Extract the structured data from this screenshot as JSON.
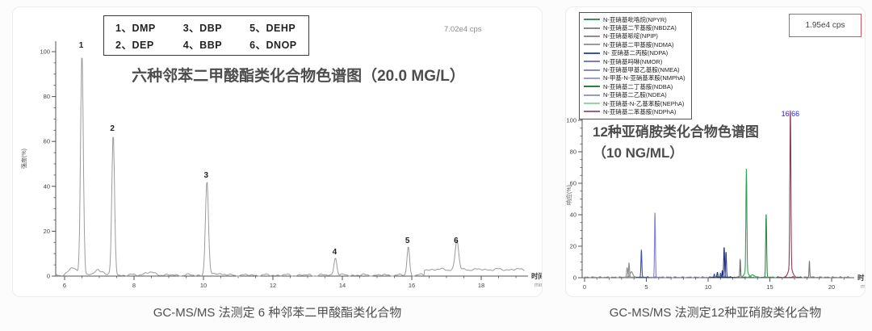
{
  "page": {
    "captions": {
      "left": "GC-MS/MS 法测定 6 种邻苯二甲酸酯类化合物",
      "right": "GC-MS/MS 法测定12种亚硝胺类化合物"
    }
  },
  "chart_data": [
    {
      "type": "line",
      "title": "六种邻苯二甲酸酯类化合物色谱图（20.0 MG/L）",
      "annotation": "7.02e4 cps",
      "xlabel": "时间",
      "xunit": "min",
      "ylabel": "强度(%)",
      "xlim": [
        5.75,
        19.25
      ],
      "ylim": [
        0,
        105
      ],
      "xticks": [
        6,
        8,
        10,
        12,
        14,
        16,
        18
      ],
      "yticks": [
        0,
        20,
        40,
        60,
        80,
        100
      ],
      "legend_items": [
        "1、DMP",
        "3、DBP",
        "5、DEHP",
        "2、DEP",
        "4、BBP",
        "6、DNOP"
      ],
      "trace_color": "#9b9b9b",
      "peaks": [
        {
          "label": "1",
          "t": 6.5,
          "h": 100,
          "w": 0.055
        },
        {
          "label": "2",
          "t": 7.4,
          "h": 63,
          "w": 0.055
        },
        {
          "label": "3",
          "t": 10.1,
          "h": 42,
          "w": 0.06
        },
        {
          "label": "4",
          "t": 13.8,
          "h": 8,
          "w": 0.06
        },
        {
          "label": "5",
          "t": 15.9,
          "h": 13,
          "w": 0.05
        },
        {
          "label": "6",
          "t": 17.3,
          "h": 13,
          "w": 0.07
        }
      ],
      "bumps": [
        {
          "t": 6.22,
          "h": 3.2,
          "w": 0.16
        },
        {
          "t": 6.95,
          "h": 2.2,
          "w": 0.12
        },
        {
          "t": 7.12,
          "h": 1.4,
          "w": 0.08
        },
        {
          "t": 8.45,
          "h": 1.1,
          "w": 0.25
        },
        {
          "t": 10.35,
          "h": 0.9,
          "w": 0.2
        }
      ],
      "baseline_step": {
        "t": 16.35,
        "offset": 2.5
      }
    },
    {
      "type": "line",
      "title_lines": [
        "12种亚硝胺类化合物色谱图",
        "（10 NG/ML）"
      ],
      "annotation": "1.95e4 cps",
      "xlabel": "时间",
      "xunit": "min",
      "ylabel": "响应(%)",
      "xlim": [
        0,
        21.6
      ],
      "ylim": [
        0,
        105
      ],
      "xticks": [
        0,
        5,
        10,
        15,
        20
      ],
      "yticks": [
        0,
        20,
        40,
        60,
        80,
        100
      ],
      "legend": [
        {
          "label": "N-亚硝基吡咯烷(NPYR)",
          "color": "#3d8f5f"
        },
        {
          "label": "N-亚硝基二苄基胺(NBDZA)",
          "color": "#8a8a8a"
        },
        {
          "label": "N-亚硝基哌啶(NPIP)",
          "color": "#9a8a8e"
        },
        {
          "label": "N-亚硝基二甲基胺(NDMA)",
          "color": "#9a9a9a"
        },
        {
          "label": "N- 亚硝基二丙胺(NDPA)",
          "color": "#3c50b4"
        },
        {
          "label": "N-亚硝基吗啉(NMOR)",
          "color": "#7a7ac8"
        },
        {
          "label": "N-亚硝基甲基乙基胺(NMEA)",
          "color": "#8090c0"
        },
        {
          "label": "N-甲基-N-亚硝基苯胺(NMPhA)",
          "color": "#9aa0c8"
        },
        {
          "label": "N-亚硝基二丁基胺(NDBA)",
          "color": "#2e7d46"
        },
        {
          "label": "N-亚硝基二乙胺(NDEA)",
          "color": "#90a0c8"
        },
        {
          "label": "N-亚硝基-N-乙基苯胺(NEPhA)",
          "color": "#8fd89f"
        },
        {
          "label": "N-亚硝基二苯基胺(NDPhA)",
          "color": "#a06080"
        }
      ],
      "baseline_segments": [
        {
          "from": 0,
          "to": 4.35,
          "color": "#8a8a8a"
        },
        {
          "from": 4.35,
          "to": 5.25,
          "color": "#3c50b4"
        },
        {
          "from": 5.25,
          "to": 10.35,
          "color": "#8080cc"
        },
        {
          "from": 10.35,
          "to": 12.35,
          "color": "#1e2f7a"
        },
        {
          "from": 12.35,
          "to": 12.85,
          "color": "#666666"
        },
        {
          "from": 12.85,
          "to": 15.55,
          "color": "#35a055"
        },
        {
          "from": 15.55,
          "to": 17.6,
          "color": "#8a3a5a"
        },
        {
          "from": 17.6,
          "to": 21.5,
          "color": "#888888"
        }
      ],
      "peaks": [
        {
          "t": 3.45,
          "h": 6,
          "w": 0.06,
          "color": "#8a8a8a"
        },
        {
          "t": 3.6,
          "h": 9,
          "w": 0.05,
          "color": "#8a8a8a"
        },
        {
          "t": 3.8,
          "h": 3.5,
          "w": 0.15,
          "color": "#8a8a8a"
        },
        {
          "t": 4.6,
          "h": 17,
          "w": 0.05,
          "color": "#3c50b4"
        },
        {
          "t": 5.7,
          "h": 41,
          "w": 0.05,
          "color": "#8080cc"
        },
        {
          "t": 10.5,
          "h": 2,
          "w": 0.05,
          "color": "#3c50b4"
        },
        {
          "t": 10.75,
          "h": 3,
          "w": 0.05,
          "color": "#1e2f7a"
        },
        {
          "t": 11.0,
          "h": 2.5,
          "w": 0.04,
          "color": "#3c50b4"
        },
        {
          "t": 11.15,
          "h": 4,
          "w": 0.04,
          "color": "#1e2f7a"
        },
        {
          "t": 11.3,
          "h": 19,
          "w": 0.05,
          "color": "#1e2f7a"
        },
        {
          "t": 11.45,
          "h": 16,
          "w": 0.05,
          "color": "#2a3a8c"
        },
        {
          "t": 12.6,
          "h": 11,
          "w": 0.04,
          "color": "#666666"
        },
        {
          "t": 13.1,
          "h": 65,
          "w": 0.055,
          "color": "#35a055"
        },
        {
          "t": 13.6,
          "h": 1.5,
          "w": 0.2,
          "color": "#35a055"
        },
        {
          "t": 14.7,
          "h": 40,
          "w": 0.055,
          "color": "#2e8a4a"
        },
        {
          "t": 16.66,
          "h": 100,
          "w": 0.06,
          "color": "#8a3a5a",
          "label": "16.66",
          "label_color": "#2424d8"
        },
        {
          "t": 18.2,
          "h": 10,
          "w": 0.04,
          "color": "#777777"
        }
      ]
    }
  ]
}
